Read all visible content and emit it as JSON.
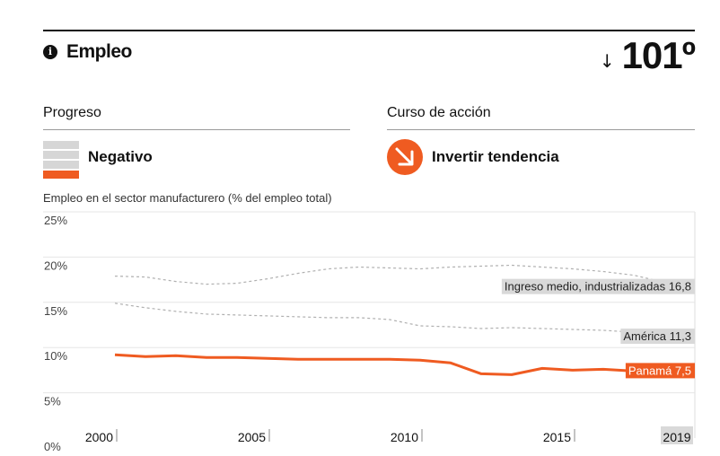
{
  "header": {
    "title": "Empleo",
    "rank_arrow": "↓",
    "rank": "101º"
  },
  "progress": {
    "heading": "Progreso",
    "status": "Negativo",
    "level_of_4": 1
  },
  "action": {
    "heading": "Curso de acción",
    "text": "Invertir tendencia"
  },
  "colors": {
    "accent": "#ef5b21",
    "reference_line": "#b0b0b0",
    "label_bg": "#d9d9d9",
    "grid": "#e6e6e6"
  },
  "icons": {
    "info": "info-icon",
    "action": "arrow-down-right-icon"
  },
  "chart_data": {
    "type": "line",
    "title": "Empleo en el sector manufacturero (% del empleo total)",
    "xlim": [
      2000,
      2019
    ],
    "ylim": [
      0,
      25
    ],
    "y_ticks": [
      {
        "value": 0,
        "label": "0%"
      },
      {
        "value": 5,
        "label": "5%"
      },
      {
        "value": 10,
        "label": "10%"
      },
      {
        "value": 15,
        "label": "15%"
      },
      {
        "value": 20,
        "label": "20%"
      },
      {
        "value": 25,
        "label": "25%"
      }
    ],
    "x_ticks": [
      {
        "value": 2000,
        "label": "2000"
      },
      {
        "value": 2005,
        "label": "2005"
      },
      {
        "value": 2010,
        "label": "2010"
      },
      {
        "value": 2015,
        "label": "2015"
      },
      {
        "value": 2019,
        "label": "2019"
      }
    ],
    "x": [
      2000,
      2001,
      2002,
      2003,
      2004,
      2005,
      2006,
      2007,
      2008,
      2009,
      2010,
      2011,
      2012,
      2013,
      2014,
      2015,
      2016,
      2017,
      2018,
      2019
    ],
    "series": [
      {
        "name": "Ingreso medio, industrializadas",
        "end_label": "16,8",
        "style": "dashed",
        "values": [
          17.9,
          17.8,
          17.3,
          17.0,
          17.1,
          17.6,
          18.2,
          18.7,
          18.9,
          18.8,
          18.7,
          18.9,
          19.0,
          19.1,
          18.9,
          18.7,
          18.4,
          18.0,
          17.2,
          16.8
        ]
      },
      {
        "name": "América",
        "end_label": "11,3",
        "style": "dashed",
        "values": [
          14.9,
          14.4,
          14.0,
          13.7,
          13.6,
          13.5,
          13.4,
          13.3,
          13.3,
          13.1,
          12.4,
          12.3,
          12.1,
          12.2,
          12.1,
          12.0,
          11.9,
          11.7,
          11.5,
          11.3
        ]
      },
      {
        "name": "Panamá",
        "end_label": "7,5",
        "style": "solid",
        "values": [
          9.2,
          9.0,
          9.1,
          8.9,
          8.9,
          8.8,
          8.7,
          8.7,
          8.7,
          8.7,
          8.6,
          8.3,
          7.1,
          7.0,
          7.7,
          7.5,
          7.6,
          7.4,
          7.5,
          7.5
        ]
      }
    ]
  }
}
